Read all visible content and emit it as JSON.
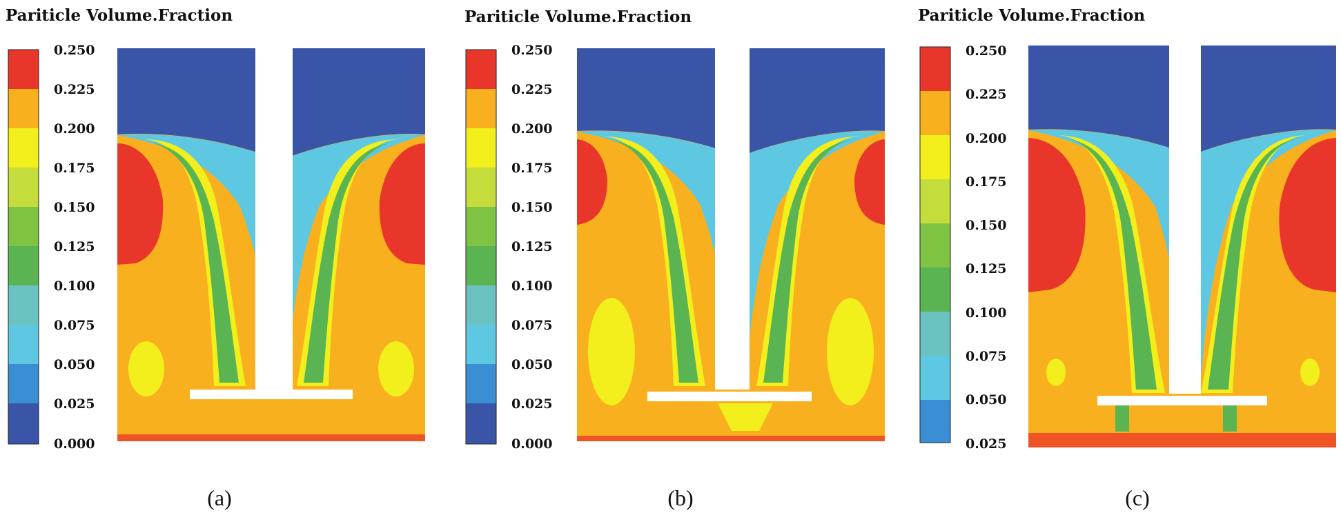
{
  "colors": {
    "levels": [
      "#3a55a8",
      "#3a8fd4",
      "#5ec8e3",
      "#6ac3c0",
      "#5ab452",
      "#7ec342",
      "#c4dd3d",
      "#f2ef1c",
      "#f8b01e",
      "#ef5326",
      "#e8372a"
    ],
    "shaft": "#ffffff",
    "impeller": "#ffffff"
  },
  "panels": [
    {
      "title": "Pariticle Volume.Fraction",
      "caption": "(a)",
      "colorbar_ticks": [
        "0.250",
        "0.225",
        "0.200",
        "0.175",
        "0.150",
        "0.125",
        "0.100",
        "0.075",
        "0.050",
        "0.025",
        "0.000"
      ]
    },
    {
      "title": "Pariticle Volume.Fraction",
      "caption": "(b)",
      "colorbar_ticks": [
        "0.250",
        "0.225",
        "0.200",
        "0.175",
        "0.150",
        "0.125",
        "0.100",
        "0.075",
        "0.050",
        "0.025",
        "0.000"
      ]
    },
    {
      "title": "Pariticle Volume.Fraction",
      "caption": "(c)",
      "colorbar_ticks": [
        "0.250",
        "0.225",
        "0.200",
        "0.175",
        "0.150",
        "0.125",
        "0.100",
        "0.075",
        "0.050",
        "0.025"
      ]
    }
  ]
}
